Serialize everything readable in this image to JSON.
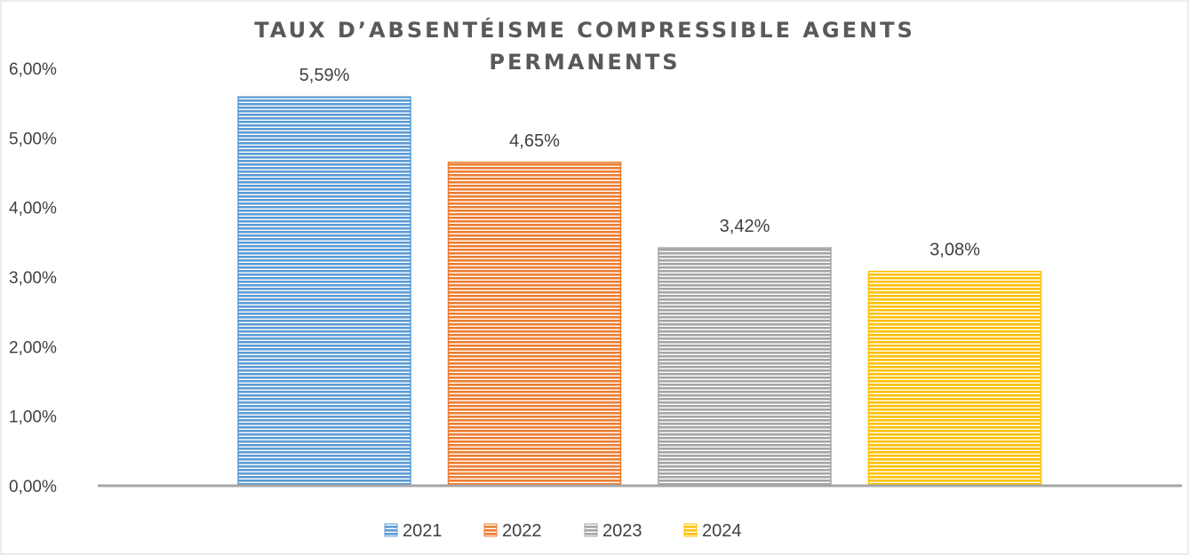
{
  "chart_data": {
    "type": "bar",
    "title_lines": [
      "TAUX D’ABSENTÉISME COMPRESSIBLE AGENTS",
      "PERMANENTS"
    ],
    "categories": [
      "2021",
      "2022",
      "2023",
      "2024"
    ],
    "values": [
      5.59,
      4.65,
      3.42,
      3.08
    ],
    "data_labels": [
      "5,59%",
      "4,65%",
      "3,42%",
      "3,08%"
    ],
    "colors": [
      "#5B9BD5",
      "#ED7D31",
      "#A5A5A5",
      "#FFC000"
    ],
    "ylim": [
      0,
      6
    ],
    "yticks": [
      0,
      1,
      2,
      3,
      4,
      5,
      6
    ],
    "ytick_labels": [
      "0,00%",
      "1,00%",
      "2,00%",
      "3,00%",
      "4,00%",
      "5,00%",
      "6,00%"
    ],
    "legend": [
      "2021",
      "2022",
      "2023",
      "2024"
    ],
    "legend_position": "bottom",
    "grid": false,
    "bar_pattern": "horizontal-stripes"
  }
}
